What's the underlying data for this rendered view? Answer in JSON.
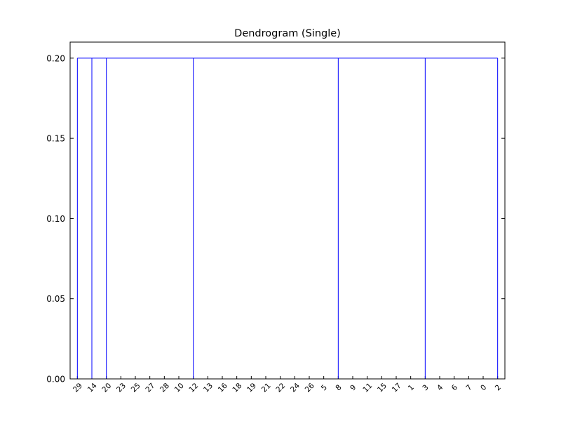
{
  "chart_data": {
    "type": "dendrogram",
    "title": "Dendrogram (Single)",
    "xlabel": "",
    "ylabel": "",
    "ylim": [
      0,
      0.21
    ],
    "yticks": [
      0.0,
      0.05,
      0.1,
      0.15,
      0.2
    ],
    "ytick_labels": [
      "0.00",
      "0.05",
      "0.10",
      "0.15",
      "0.20"
    ],
    "leaves": [
      "29",
      "14",
      "20",
      "23",
      "25",
      "27",
      "28",
      "10",
      "12",
      "13",
      "16",
      "18",
      "19",
      "21",
      "22",
      "24",
      "26",
      "5",
      "8",
      "9",
      "11",
      "15",
      "17",
      "1",
      "3",
      "4",
      "6",
      "7",
      "0",
      "2"
    ],
    "merge_height": 0.2,
    "clusters": [
      {
        "first_leaf": 0,
        "last_leaf": 1,
        "color": "#0000ff"
      },
      {
        "first_leaf": 2,
        "last_leaf": 7,
        "color": "#c84a00"
      },
      {
        "first_leaf": 8,
        "last_leaf": 17,
        "color": "#c84a00"
      },
      {
        "first_leaf": 18,
        "last_leaf": 23,
        "color": "#c84a00"
      },
      {
        "first_leaf": 24,
        "last_leaf": 28,
        "color": "#c84a00"
      },
      {
        "first_leaf": 29,
        "last_leaf": 29,
        "color": "#0000ff"
      }
    ],
    "link_color": "#0000ff",
    "grid": false,
    "legend": false
  }
}
